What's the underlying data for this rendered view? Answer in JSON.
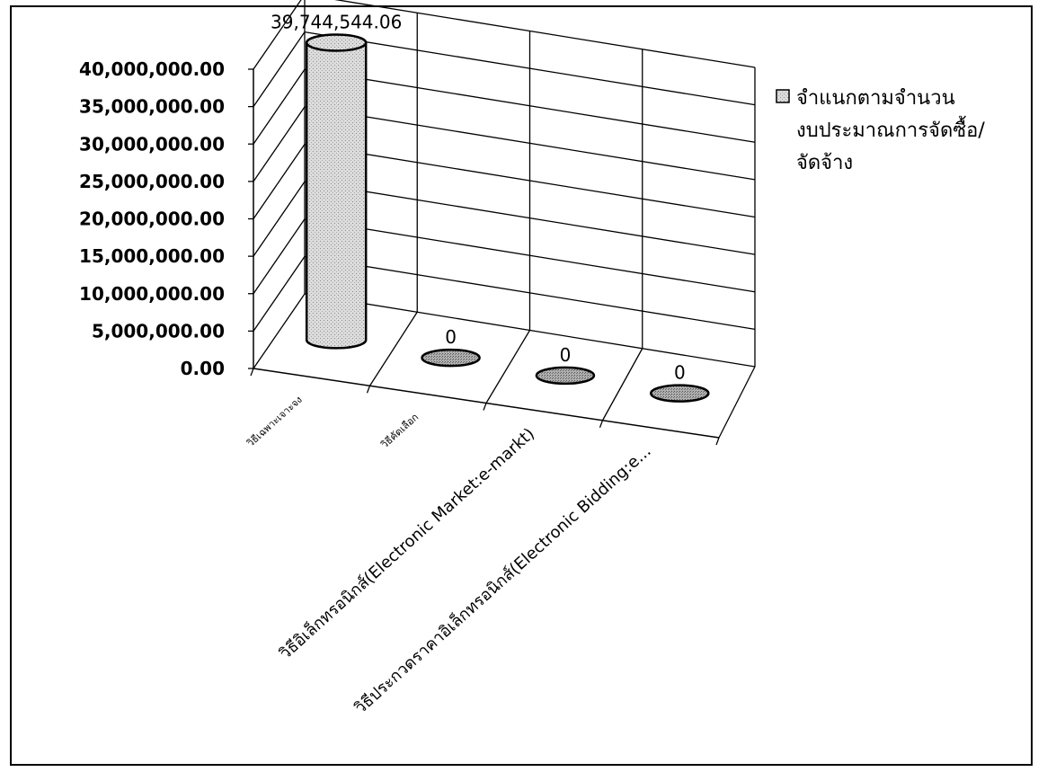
{
  "chart_data": {
    "type": "bar",
    "style": "3d-cylinder",
    "categories": [
      "วิธีเฉพาะเจาะจง",
      "วิธีคัดเลือก",
      "วิธีอิเล็กทรอนิกส์(Electronic Market:e-markt)",
      "วิธีประกวดราคาอิเล็กทรอนิกส์(Electronic Bidding:e..."
    ],
    "series": [
      {
        "name": "จำแนกตามจำนวนงบประมาณการจัดซื้อ/จัดจ้าง",
        "values": [
          39744544.06,
          0,
          0,
          0
        ],
        "labels": [
          "39,744,544.06",
          "0",
          "0",
          "0"
        ]
      }
    ],
    "ylim": [
      0,
      40000000
    ],
    "y_ticks": [
      "0.00",
      "5,000,000.00",
      "10,000,000.00",
      "15,000,000.00",
      "20,000,000.00",
      "25,000,000.00",
      "30,000,000.00",
      "35,000,000.00",
      "40,000,000.00"
    ],
    "grid": true,
    "legend_position": "right",
    "legend_lines": [
      "จำแนกตามจำนวน",
      "งบประมาณการจัดซื้อ/",
      "จัดจ้าง"
    ],
    "colors": {
      "bar_fill": "#d8d8d8",
      "disc_fill": "#a0a0a0",
      "stroke": "#000000",
      "legend_swatch": "#d0d0d0"
    }
  }
}
